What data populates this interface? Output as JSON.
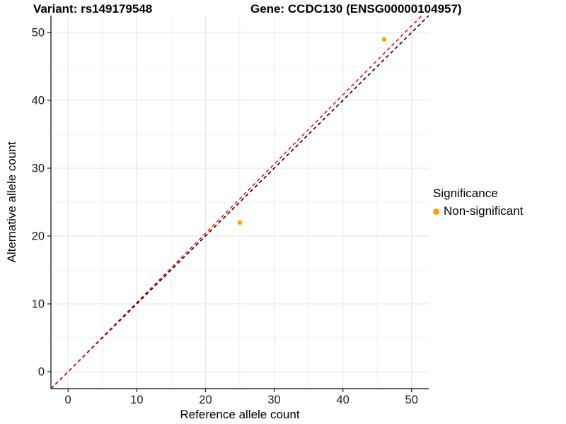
{
  "chart_data": {
    "type": "scatter",
    "titles": {
      "variant": "Variant: rs149179548",
      "gene": "Gene: CCDC130 (ENSG00000104957)"
    },
    "xlabel": "Reference allele count",
    "ylabel": "Alternative allele count",
    "xlim": [
      -2.5,
      52.5
    ],
    "ylim": [
      -2.5,
      52.5
    ],
    "x_ticks": [
      0,
      10,
      20,
      30,
      40,
      50
    ],
    "y_ticks": [
      0,
      10,
      20,
      30,
      40,
      50
    ],
    "x_minor_ticks": [
      5,
      15,
      25,
      35,
      45
    ],
    "y_minor_ticks": [
      5,
      15,
      25,
      35,
      45
    ],
    "grid": true,
    "series": [
      {
        "name": "Non-significant",
        "color": "#FFA500",
        "points": [
          {
            "x": 25,
            "y": 22
          },
          {
            "x": 46,
            "y": 49
          }
        ]
      }
    ],
    "reference_lines": [
      {
        "name": "identity-line",
        "slope": 1.0,
        "intercept": 0,
        "color": "#000000",
        "dash": "5 4"
      },
      {
        "name": "expected-ratio-line",
        "slope": 1.02,
        "intercept": 0,
        "color": "#EE1100",
        "dash": "5 4"
      }
    ],
    "legend": {
      "title": "Significance",
      "position": "right",
      "items": [
        {
          "label": "Non-significant",
          "color": "#FFA500"
        }
      ]
    },
    "colors": {
      "grid_major": "#E3E3E3",
      "grid_minor": "#F0F0F0",
      "axis_line": "#333333",
      "tick_label": "#1A1A1A",
      "background": "#FFFFFF"
    }
  }
}
